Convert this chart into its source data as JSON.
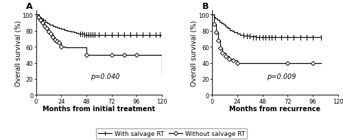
{
  "panel_A": {
    "title": "A",
    "xlabel": "Months from initial treatment",
    "ylabel": "Overall survival (%)",
    "pvalue": "p=0.040",
    "xlim": [
      0,
      120
    ],
    "ylim": [
      0,
      105
    ],
    "xticks": [
      0,
      24,
      48,
      72,
      96,
      120
    ],
    "yticks": [
      0,
      20,
      40,
      60,
      80,
      100
    ],
    "with_RT": {
      "times": [
        0,
        3,
        5,
        7,
        9,
        11,
        13,
        16,
        18,
        20,
        22,
        24,
        27,
        30,
        33,
        36,
        38,
        40,
        42,
        44,
        46,
        48,
        60,
        72,
        84,
        96,
        108,
        118,
        120
      ],
      "surv": [
        100,
        97,
        95,
        93,
        91,
        89,
        87,
        86,
        85,
        84,
        83,
        82,
        81,
        80,
        79,
        78,
        77,
        76,
        76,
        76,
        75,
        75,
        75,
        75,
        75,
        75,
        75,
        75,
        75
      ],
      "censor_times": [
        42,
        44,
        46,
        48,
        50,
        52,
        54,
        56,
        60,
        66,
        72,
        78,
        84,
        90,
        96,
        102,
        108,
        114,
        118
      ],
      "censor_vals": [
        76,
        76,
        75,
        75,
        75,
        75,
        75,
        75,
        75,
        75,
        75,
        75,
        75,
        75,
        75,
        75,
        75,
        75,
        75
      ]
    },
    "without_RT": {
      "times": [
        0,
        2,
        4,
        6,
        8,
        10,
        12,
        14,
        16,
        18,
        20,
        22,
        24,
        28,
        36,
        48,
        60,
        72,
        84,
        96,
        108,
        118,
        120
      ],
      "surv": [
        100,
        97,
        93,
        90,
        86,
        83,
        79,
        76,
        72,
        69,
        67,
        65,
        60,
        59,
        59,
        50,
        50,
        50,
        50,
        50,
        50,
        50,
        25
      ],
      "diamond_times": [
        2,
        4,
        6,
        8,
        10,
        12,
        14,
        16,
        18,
        20,
        22,
        24,
        48,
        72,
        84,
        96
      ],
      "diamond_vals": [
        97,
        93,
        90,
        86,
        83,
        79,
        76,
        72,
        69,
        67,
        65,
        60,
        50,
        50,
        50,
        50
      ]
    }
  },
  "panel_B": {
    "title": "B",
    "xlabel": "Months from recurrence",
    "ylabel": "Overall survival (%)",
    "pvalue": "p=0.009",
    "xlim": [
      0,
      120
    ],
    "ylim": [
      0,
      105
    ],
    "xticks": [
      0,
      24,
      48,
      72,
      96,
      120
    ],
    "yticks": [
      0,
      20,
      40,
      60,
      80,
      100
    ],
    "with_RT": {
      "times": [
        0,
        2,
        3,
        5,
        7,
        9,
        11,
        13,
        15,
        17,
        19,
        21,
        24,
        27,
        30,
        36,
        42,
        48,
        54,
        60,
        66,
        72,
        78,
        84,
        90,
        96,
        104
      ],
      "surv": [
        100,
        97,
        95,
        93,
        91,
        89,
        87,
        85,
        83,
        81,
        80,
        78,
        76,
        75,
        74,
        73,
        72,
        72,
        72,
        72,
        72,
        72,
        72,
        72,
        72,
        72,
        72
      ],
      "censor_times": [
        30,
        33,
        36,
        39,
        42,
        45,
        48,
        51,
        54,
        57,
        60,
        66,
        72,
        78,
        84,
        90,
        96,
        104
      ],
      "censor_vals": [
        74,
        73,
        73,
        72,
        72,
        72,
        72,
        72,
        72,
        72,
        72,
        72,
        72,
        72,
        72,
        72,
        72,
        72
      ]
    },
    "without_RT": {
      "times": [
        0,
        2,
        4,
        6,
        8,
        10,
        13,
        16,
        20,
        24,
        30,
        72,
        96,
        104
      ],
      "surv": [
        100,
        88,
        78,
        68,
        58,
        52,
        48,
        45,
        43,
        40,
        40,
        40,
        40,
        40
      ],
      "diamond_times": [
        2,
        4,
        6,
        8,
        10,
        13,
        16,
        20,
        24,
        72,
        96
      ],
      "diamond_vals": [
        88,
        78,
        68,
        58,
        52,
        48,
        45,
        43,
        40,
        40,
        40
      ]
    }
  },
  "legend": {
    "with_label": "With salvage RT",
    "without_label": "Without salvage RT"
  },
  "line_color": "#000000",
  "fontsize_label": 7,
  "fontsize_tick": 6,
  "fontsize_pval": 7,
  "fontsize_title": 9
}
